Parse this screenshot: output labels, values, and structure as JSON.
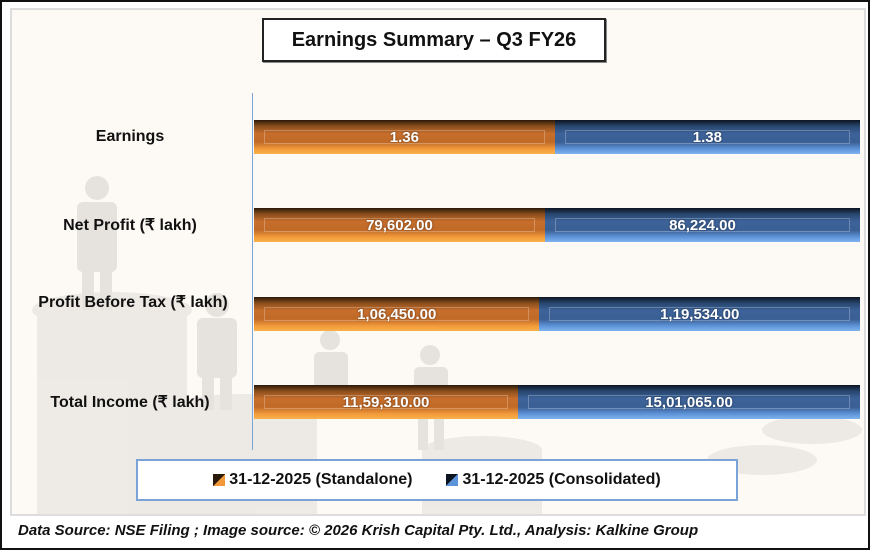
{
  "chart_data": {
    "type": "bar",
    "orientation": "horizontal",
    "stacking": "percent",
    "title": "Earnings Summary – Q3 FY26",
    "xlabel": "",
    "ylabel": "",
    "grid": false,
    "legend_position": "bottom",
    "categories": [
      "Earnings",
      "Net Profit (₹ lakh)",
      "Profit Before Tax (₹ lakh)",
      "Total Income (₹ lakh)"
    ],
    "series": [
      {
        "name": "31-12-2025 (Standalone)",
        "color": "#e07f2e",
        "values": [
          1.36,
          79602.0,
          106450.0,
          1159310.0
        ],
        "labels": [
          "1.36",
          "79,602.00",
          "1,06,450.00",
          "11,59,310.00"
        ]
      },
      {
        "name": "31-12-2025 (Consolidated)",
        "color": "#4a76b8",
        "values": [
          1.38,
          86224.0,
          119534.0,
          1501065.0
        ],
        "labels": [
          "1.38",
          "86,224.00",
          "1,19,534.00",
          "15,01,065.00"
        ]
      }
    ]
  },
  "footer": {
    "source": "Data Source: NSE Filing ; Image source: © 2026 Krish Capital Pty. Ltd., Analysis: Kalkine Group"
  }
}
